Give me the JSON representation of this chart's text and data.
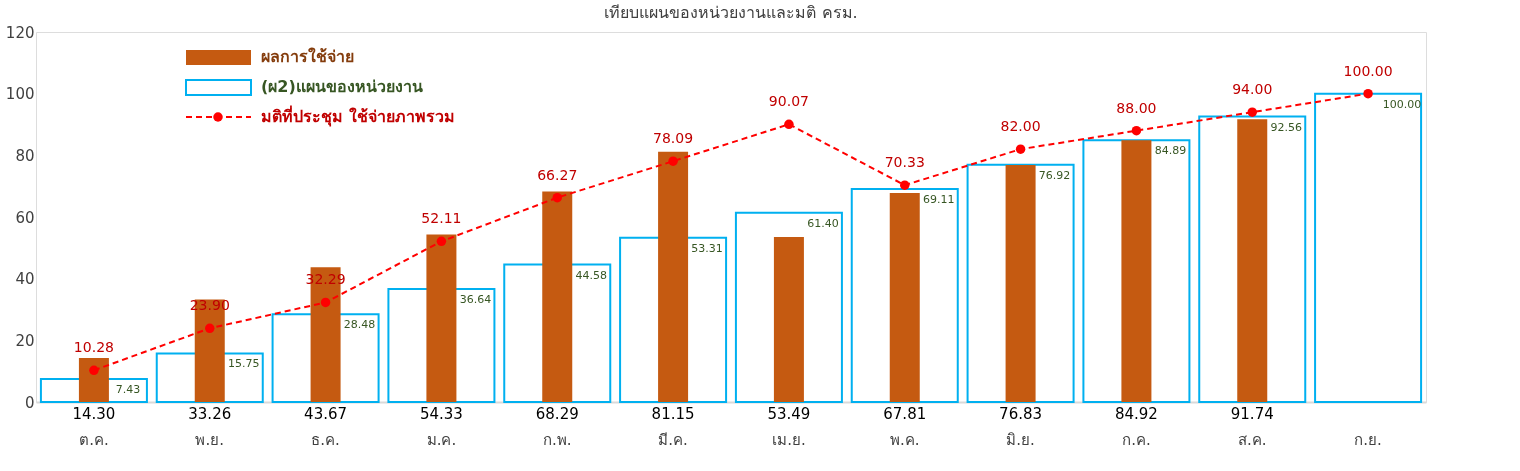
{
  "chart_data": {
    "type": "bar",
    "title": "เทียบแผนของหน่วยงานและมติ ครม.",
    "categories": [
      "ต.ค.",
      "พ.ย.",
      "ธ.ค.",
      "ม.ค.",
      "ก.พ.",
      "มี.ค.",
      "เม.ย.",
      "พ.ค.",
      "มิ.ย.",
      "ก.ค.",
      "ส.ค.",
      "ก.ย."
    ],
    "series": [
      {
        "name": "ผลการใช้จ่าย",
        "color": "#c55a11",
        "values": [
          14.3,
          33.26,
          43.67,
          54.33,
          68.29,
          81.15,
          53.49,
          67.81,
          76.83,
          84.92,
          91.74,
          null
        ],
        "value_labels": [
          "14.30",
          "33.26",
          "43.67",
          "54.33",
          "68.29",
          "81.15",
          "53.49",
          "67.81",
          "76.83",
          "84.92",
          "91.74",
          null
        ]
      },
      {
        "name": "(ผ2)แผนของหน่วยงาน",
        "color": "#00b0f0",
        "values": [
          7.43,
          15.75,
          28.48,
          36.64,
          44.58,
          53.31,
          61.4,
          69.11,
          76.92,
          84.89,
          92.56,
          100.0
        ],
        "value_labels": [
          "7.43",
          "15.75",
          "28.48",
          "36.64",
          "44.58",
          "53.31",
          "61.40",
          "69.11",
          "76.92",
          "84.89",
          "92.56",
          "100.00"
        ]
      },
      {
        "name": "มติที่ประชุม ใช้จ่ายภาพรวม",
        "type": "line",
        "color": "#ff0000",
        "values": [
          10.28,
          23.9,
          32.29,
          52.11,
          66.27,
          78.09,
          90.07,
          70.33,
          82.0,
          88.0,
          94.0,
          100.0
        ],
        "value_labels": [
          "10.28",
          "23.90",
          "32.29",
          "52.11",
          "66.27",
          "78.09",
          "90.07",
          "70.33",
          "82.00",
          "88.00",
          "94.00",
          "100.00"
        ]
      }
    ],
    "ylim": [
      0,
      120
    ],
    "yticks": [
      0,
      20,
      40,
      60,
      80,
      100,
      120
    ],
    "grid": false,
    "legend": "top left",
    "marker": "circle",
    "line_style": "dashed"
  }
}
